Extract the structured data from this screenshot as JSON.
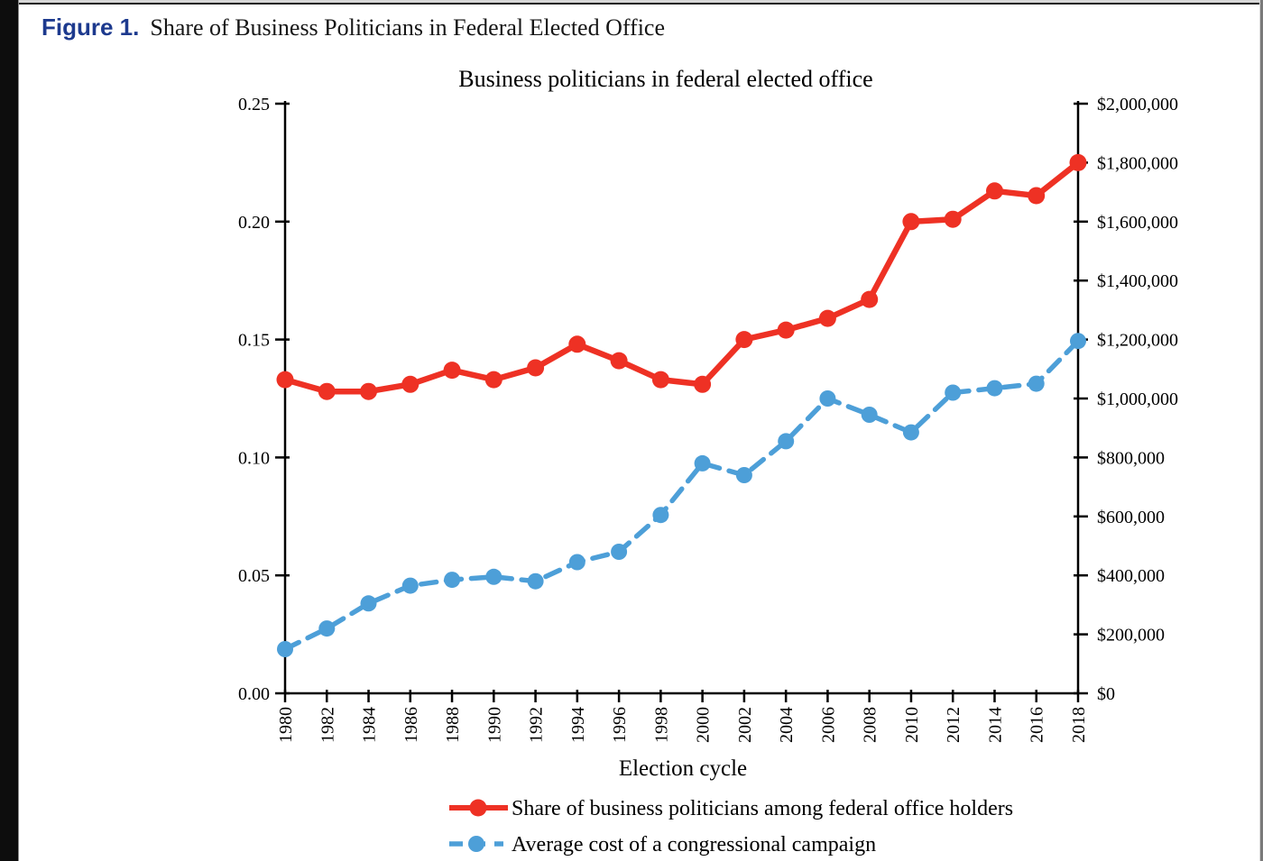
{
  "page": {
    "figure_label": "Figure 1.",
    "figure_caption": "Share of Business Politicians in Federal Elected Office"
  },
  "colors": {
    "series_red": "#ee3124",
    "series_blue": "#4d9fd8",
    "figure_label_blue": "#1d3a8e",
    "axis_black": "#000000"
  },
  "chart_data": {
    "type": "line",
    "title": "Business politicians in federal elected office",
    "xlabel": "Election cycle",
    "grid": false,
    "legend_position": "bottom",
    "x": [
      1980,
      1982,
      1984,
      1986,
      1988,
      1990,
      1992,
      1994,
      1996,
      1998,
      2000,
      2002,
      2004,
      2006,
      2008,
      2010,
      2012,
      2014,
      2016,
      2018
    ],
    "series": [
      {
        "name": "Share of business politicians among federal office holders",
        "axis": "left",
        "color": "#ee3124",
        "line_style": "solid",
        "marker": "circle",
        "values": [
          0.133,
          0.128,
          0.128,
          0.131,
          0.137,
          0.133,
          0.138,
          0.148,
          0.141,
          0.133,
          0.131,
          0.15,
          0.154,
          0.159,
          0.167,
          0.2,
          0.201,
          0.213,
          0.211,
          0.225
        ]
      },
      {
        "name": "Average cost of a congressional campaign",
        "axis": "right",
        "color": "#4d9fd8",
        "line_style": "dashed",
        "marker": "circle",
        "values": [
          150000,
          220000,
          305000,
          365000,
          385000,
          395000,
          380000,
          445000,
          480000,
          605000,
          780000,
          740000,
          855000,
          1000000,
          945000,
          885000,
          1020000,
          1035000,
          1050000,
          1195000
        ]
      }
    ],
    "left_axis": {
      "range": [
        0,
        0.25
      ],
      "ticks": [
        0,
        0.05,
        0.1,
        0.15,
        0.2,
        0.25
      ],
      "tick_labels": [
        "0.00",
        "0.05",
        "0.10",
        "0.15",
        "0.20",
        "0.25"
      ]
    },
    "right_axis": {
      "range": [
        0,
        2000000
      ],
      "ticks": [
        0,
        200000,
        400000,
        600000,
        800000,
        1000000,
        1200000,
        1400000,
        1600000,
        1800000,
        2000000
      ],
      "tick_labels": [
        "$0",
        "$200,000",
        "$400,000",
        "$600,000",
        "$800,000",
        "$1,000,000",
        "$1,200,000",
        "$1,400,000",
        "$1,600,000",
        "$1,800,000",
        "$2,000,000"
      ]
    }
  }
}
